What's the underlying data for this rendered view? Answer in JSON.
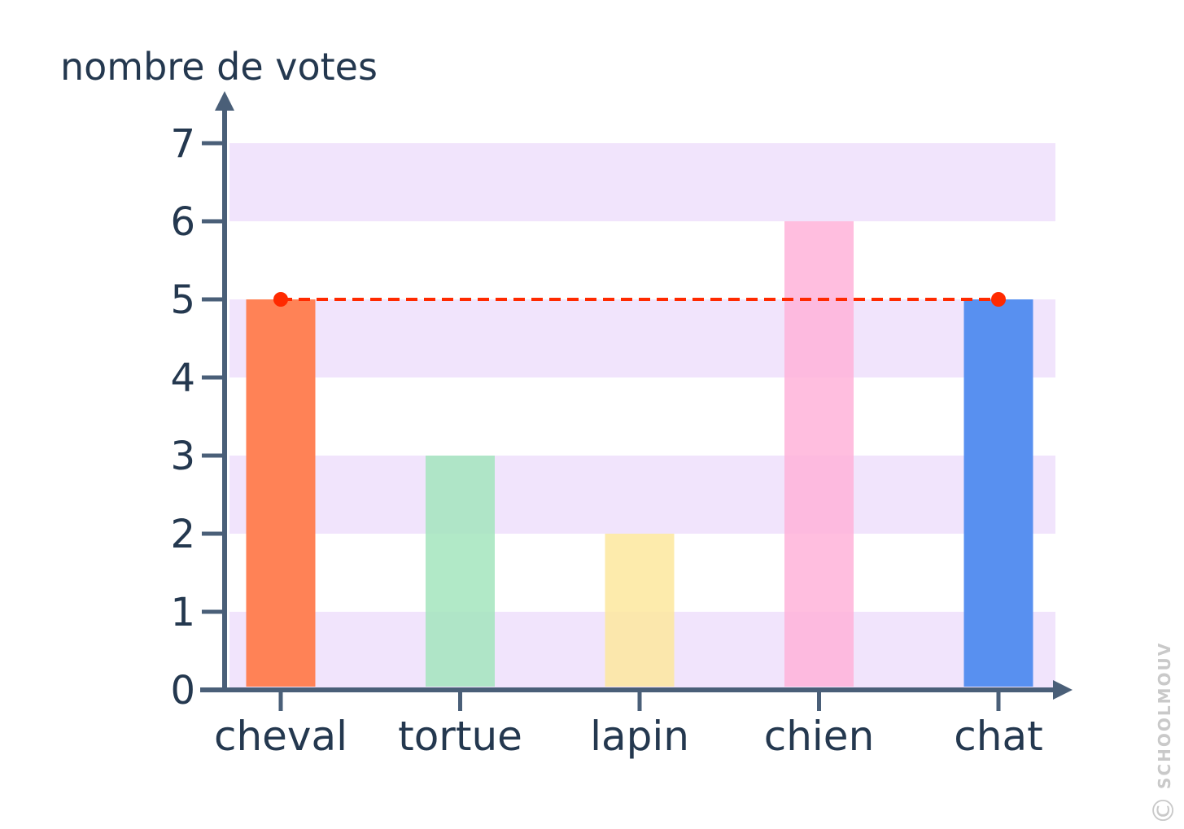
{
  "chart_data": {
    "type": "bar",
    "ylabel": "nombre de votes",
    "xlabel": "",
    "categories": [
      "cheval",
      "tortue",
      "lapin",
      "chien",
      "chat"
    ],
    "values": [
      5,
      3,
      2,
      6,
      5
    ],
    "ylim": [
      0,
      7
    ],
    "yticks": [
      0,
      1,
      2,
      3,
      4,
      5,
      6,
      7
    ],
    "colors": [
      "#ff8256",
      "#a3e5bd",
      "#fde79d",
      "#ffb3d9",
      "#5890f0"
    ],
    "band_color": "#f1e4fc",
    "reference_line": {
      "y": 5,
      "from": "cheval",
      "to": "chat",
      "color": "#ff2a00",
      "style": "dashed"
    },
    "grid": "alternating horizontal bands"
  },
  "watermark": {
    "text": "SCHOOLMOUV",
    "symbol": "©"
  }
}
